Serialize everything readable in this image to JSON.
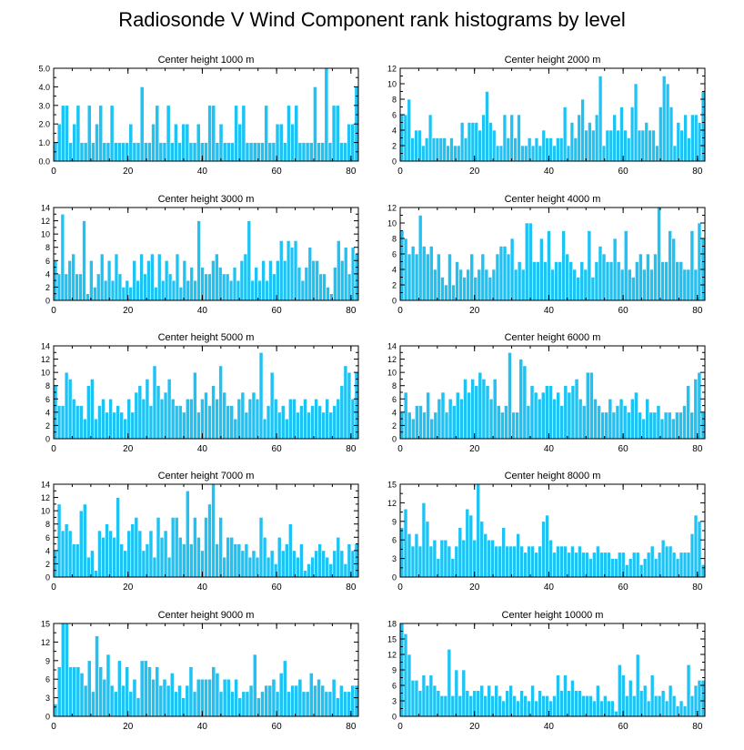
{
  "title": "Radiosonde V Wind Component rank histograms by level",
  "colors": {
    "bar_fill": "#1ec3f4",
    "bar_stroke": "#ffffff",
    "axis": "#000000"
  },
  "chart_data": [
    {
      "type": "bar",
      "title": "Center height 1000 m",
      "ylim": [
        0,
        5
      ],
      "yticks": [
        0,
        1,
        2,
        3,
        4,
        5
      ],
      "ytick_labels": [
        "0.0",
        "1.0",
        "2.0",
        "3.0",
        "4.0",
        "5.0"
      ],
      "xlim": [
        0,
        82
      ],
      "xticks": [
        0,
        20,
        40,
        60,
        80
      ],
      "values": [
        1,
        2,
        3,
        3,
        1,
        2,
        3,
        1,
        1,
        3,
        1,
        2,
        3,
        1,
        1,
        3,
        1,
        1,
        1,
        1,
        2,
        1,
        1,
        4,
        1,
        1,
        2,
        3,
        1,
        1,
        3,
        1,
        2,
        1,
        2,
        2,
        1,
        1,
        2,
        1,
        1,
        3,
        3,
        1,
        2,
        1,
        1,
        1,
        3,
        2,
        3,
        1,
        1,
        1,
        1,
        1,
        3,
        1,
        1,
        2,
        2,
        1,
        3,
        2,
        3,
        1,
        1,
        1,
        1,
        4,
        1,
        1,
        5,
        1,
        3,
        3,
        1,
        1,
        2,
        2,
        4
      ]
    },
    {
      "type": "bar",
      "title": "Center height 2000 m",
      "ylim": [
        0,
        12
      ],
      "yticks": [
        0,
        2,
        4,
        6,
        8,
        10,
        12
      ],
      "ytick_labels": [
        "0",
        "2",
        "4",
        "6",
        "8",
        "10",
        "12"
      ],
      "xlim": [
        0,
        82
      ],
      "xticks": [
        0,
        20,
        40,
        60,
        80
      ],
      "values": [
        6,
        6,
        8,
        3,
        4,
        4,
        2,
        3,
        6,
        3,
        3,
        3,
        3,
        2,
        3,
        2,
        2,
        5,
        3,
        5,
        5,
        5,
        4,
        6,
        9,
        5,
        4,
        2,
        2,
        6,
        3,
        6,
        3,
        6,
        2,
        2,
        3,
        2,
        3,
        2,
        4,
        3,
        3,
        2,
        3,
        3,
        7,
        2,
        5,
        3,
        6,
        8,
        4,
        5,
        4,
        6,
        11,
        2,
        4,
        4,
        6,
        4,
        7,
        4,
        3,
        7,
        10,
        4,
        4,
        5,
        4,
        4,
        2,
        7,
        11,
        10,
        7,
        2,
        5,
        4,
        6,
        3,
        6,
        6,
        5,
        9
      ]
    },
    {
      "type": "bar",
      "title": "Center height 3000 m",
      "ylim": [
        0,
        14
      ],
      "yticks": [
        0,
        2,
        4,
        6,
        8,
        10,
        12,
        14
      ],
      "ytick_labels": [
        "0",
        "2",
        "4",
        "6",
        "8",
        "10",
        "12",
        "14"
      ],
      "xlim": [
        0,
        82
      ],
      "xticks": [
        0,
        20,
        40,
        60,
        80
      ],
      "values": [
        6,
        4,
        13,
        4,
        6,
        7,
        4,
        4,
        12,
        1,
        6,
        2,
        4,
        7,
        3,
        6,
        3,
        7,
        4,
        2,
        3,
        2,
        6,
        3,
        7,
        4,
        6,
        7,
        2,
        7,
        3,
        6,
        4,
        3,
        7,
        2,
        6,
        3,
        5,
        3,
        12,
        5,
        4,
        4,
        6,
        7,
        5,
        4,
        4,
        3,
        5,
        3,
        6,
        7,
        12,
        3,
        5,
        3,
        6,
        3,
        6,
        4,
        6,
        9,
        6,
        9,
        8,
        9,
        5,
        3,
        5,
        8,
        6,
        6,
        4,
        4,
        2,
        1,
        5,
        9,
        6,
        8,
        4,
        8,
        7
      ]
    },
    {
      "type": "bar",
      "title": "Center height 4000 m",
      "ylim": [
        0,
        12
      ],
      "yticks": [
        0,
        2,
        4,
        6,
        8,
        10,
        12
      ],
      "ytick_labels": [
        "0",
        "2",
        "4",
        "6",
        "8",
        "10",
        "12"
      ],
      "xlim": [
        0,
        82
      ],
      "xticks": [
        0,
        20,
        40,
        60,
        80
      ],
      "values": [
        9,
        8,
        6,
        7,
        6,
        11,
        7,
        6,
        7,
        4,
        6,
        3,
        2,
        6,
        2,
        5,
        4,
        3,
        4,
        6,
        3,
        4,
        6,
        4,
        3,
        4,
        6,
        7,
        7,
        6,
        8,
        4,
        5,
        4,
        10,
        10,
        5,
        5,
        8,
        5,
        9,
        4,
        5,
        5,
        9,
        6,
        5,
        4,
        3,
        5,
        4,
        9,
        3,
        5,
        7,
        6,
        5,
        5,
        8,
        5,
        4,
        9,
        4,
        3,
        5,
        6,
        4,
        6,
        4,
        6,
        12,
        5,
        5,
        9,
        8,
        5,
        5,
        4,
        4,
        9,
        4,
        10,
        8
      ]
    },
    {
      "type": "bar",
      "title": "Center height 5000 m",
      "ylim": [
        0,
        14
      ],
      "yticks": [
        0,
        2,
        4,
        6,
        8,
        10,
        12,
        14
      ],
      "ytick_labels": [
        "0",
        "2",
        "4",
        "6",
        "8",
        "10",
        "12",
        "14"
      ],
      "xlim": [
        0,
        82
      ],
      "xticks": [
        0,
        20,
        40,
        60,
        80
      ],
      "values": [
        8,
        5,
        5,
        10,
        9,
        6,
        5,
        5,
        3,
        8,
        9,
        3,
        5,
        6,
        4,
        6,
        4,
        5,
        4,
        3,
        6,
        4,
        7,
        8,
        6,
        9,
        5,
        11,
        8,
        6,
        7,
        9,
        6,
        5,
        5,
        4,
        6,
        6,
        10,
        4,
        6,
        7,
        5,
        8,
        6,
        11,
        7,
        5,
        5,
        3,
        6,
        7,
        4,
        6,
        7,
        6,
        13,
        3,
        5,
        10,
        6,
        4,
        5,
        3,
        6,
        6,
        4,
        5,
        6,
        4,
        5,
        6,
        5,
        4,
        6,
        4,
        5,
        6,
        8,
        11,
        10,
        6,
        10
      ]
    },
    {
      "type": "bar",
      "title": "Center height 6000 m",
      "ylim": [
        0,
        14
      ],
      "yticks": [
        0,
        2,
        4,
        6,
        8,
        10,
        12,
        14
      ],
      "ytick_labels": [
        "0",
        "2",
        "4",
        "6",
        "8",
        "10",
        "12",
        "14"
      ],
      "xlim": [
        0,
        82
      ],
      "xticks": [
        0,
        20,
        40,
        60,
        80
      ],
      "values": [
        4,
        7,
        4,
        3,
        5,
        5,
        4,
        7,
        3,
        4,
        6,
        7,
        4,
        6,
        5,
        7,
        6,
        9,
        7,
        9,
        8,
        10,
        9,
        8,
        6,
        9,
        5,
        4,
        5,
        13,
        4,
        4,
        12,
        11,
        5,
        8,
        7,
        6,
        7,
        8,
        8,
        6,
        7,
        5,
        8,
        7,
        8,
        9,
        6,
        5,
        10,
        10,
        6,
        5,
        4,
        4,
        6,
        4,
        5,
        6,
        5,
        4,
        6,
        7,
        4,
        3,
        6,
        4,
        4,
        5,
        3,
        4,
        4,
        3,
        4,
        4,
        5,
        8,
        4,
        9,
        10,
        4
      ]
    },
    {
      "type": "bar",
      "title": "Center height 7000 m",
      "ylim": [
        0,
        14
      ],
      "yticks": [
        0,
        2,
        4,
        6,
        8,
        10,
        12,
        14
      ],
      "ytick_labels": [
        "0",
        "2",
        "4",
        "6",
        "8",
        "10",
        "12",
        "14"
      ],
      "xlim": [
        0,
        82
      ],
      "xticks": [
        0,
        20,
        40,
        60,
        80
      ],
      "values": [
        4,
        11,
        7,
        8,
        7,
        5,
        5,
        10,
        11,
        3,
        4,
        1,
        7,
        6,
        8,
        7,
        6,
        12,
        5,
        4,
        7,
        8,
        9,
        7,
        4,
        5,
        7,
        3,
        9,
        6,
        7,
        3,
        9,
        9,
        6,
        5,
        13,
        5,
        9,
        6,
        4,
        9,
        11,
        14,
        5,
        9,
        3,
        6,
        6,
        5,
        5,
        4,
        5,
        3,
        4,
        3,
        9,
        6,
        3,
        4,
        2,
        6,
        4,
        5,
        8,
        4,
        3,
        5,
        1,
        2,
        3,
        4,
        5,
        4,
        3,
        2,
        4,
        6,
        4,
        2,
        5,
        4,
        5
      ]
    },
    {
      "type": "bar",
      "title": "Center height 8000 m",
      "ylim": [
        0,
        15
      ],
      "yticks": [
        0,
        3,
        6,
        9,
        12,
        15
      ],
      "ytick_labels": [
        "0",
        "3",
        "6",
        "9",
        "12",
        "15"
      ],
      "xlim": [
        0,
        82
      ],
      "xticks": [
        0,
        20,
        40,
        60,
        80
      ],
      "values": [
        8,
        11,
        7,
        5,
        7,
        5,
        12,
        9,
        5,
        6,
        3,
        6,
        6,
        5,
        3,
        5,
        8,
        6,
        11,
        10,
        6,
        15,
        9,
        7,
        6,
        6,
        5,
        5,
        8,
        5,
        5,
        5,
        7,
        5,
        4,
        5,
        5,
        4,
        5,
        9,
        10,
        6,
        4,
        5,
        5,
        5,
        4,
        5,
        4,
        5,
        4,
        4,
        3,
        4,
        5,
        4,
        4,
        4,
        3,
        3,
        4,
        4,
        2,
        3,
        4,
        4,
        2,
        3,
        4,
        5,
        3,
        4,
        6,
        5,
        5,
        4,
        3,
        4,
        4,
        4,
        7,
        10,
        9,
        2
      ]
    },
    {
      "type": "bar",
      "title": "Center height 9000 m",
      "ylim": [
        0,
        15
      ],
      "yticks": [
        0,
        3,
        6,
        9,
        12,
        15
      ],
      "ytick_labels": [
        "0",
        "3",
        "6",
        "9",
        "12",
        "15"
      ],
      "xlim": [
        0,
        82
      ],
      "xticks": [
        0,
        20,
        40,
        60,
        80
      ],
      "values": [
        2,
        8,
        15,
        15,
        8,
        8,
        8,
        7,
        5,
        9,
        4,
        13,
        8,
        6,
        10,
        5,
        4,
        9,
        5,
        8,
        4,
        6,
        3,
        9,
        9,
        8,
        6,
        8,
        5,
        6,
        5,
        7,
        4,
        5,
        3,
        5,
        8,
        4,
        6,
        6,
        6,
        6,
        8,
        7,
        4,
        6,
        6,
        4,
        6,
        3,
        4,
        4,
        5,
        10,
        3,
        4,
        5,
        5,
        6,
        4,
        7,
        9,
        4,
        5,
        5,
        6,
        4,
        4,
        7,
        5,
        6,
        5,
        4,
        4,
        6,
        3,
        5,
        4,
        4,
        5,
        5
      ]
    },
    {
      "type": "bar",
      "title": "Center height 10000 m",
      "ylim": [
        0,
        18
      ],
      "yticks": [
        0,
        3,
        6,
        9,
        12,
        15,
        18
      ],
      "ytick_labels": [
        "0",
        "3",
        "6",
        "9",
        "12",
        "15",
        "18"
      ],
      "xlim": [
        0,
        82
      ],
      "xticks": [
        0,
        20,
        40,
        60,
        80
      ],
      "values": [
        18,
        16,
        12,
        7,
        7,
        5,
        8,
        6,
        8,
        6,
        5,
        4,
        4,
        13,
        4,
        9,
        4,
        9,
        5,
        4,
        5,
        5,
        6,
        4,
        6,
        4,
        6,
        4,
        3,
        5,
        6,
        4,
        3,
        5,
        4,
        3,
        6,
        3,
        5,
        4,
        4,
        3,
        4,
        8,
        5,
        8,
        5,
        7,
        5,
        5,
        4,
        4,
        4,
        3,
        6,
        3,
        4,
        3,
        3,
        1,
        10,
        8,
        4,
        7,
        4,
        12,
        5,
        6,
        3,
        8,
        4,
        4,
        5,
        3,
        6,
        4,
        2,
        3,
        2,
        10,
        4,
        6,
        7,
        7
      ]
    }
  ]
}
